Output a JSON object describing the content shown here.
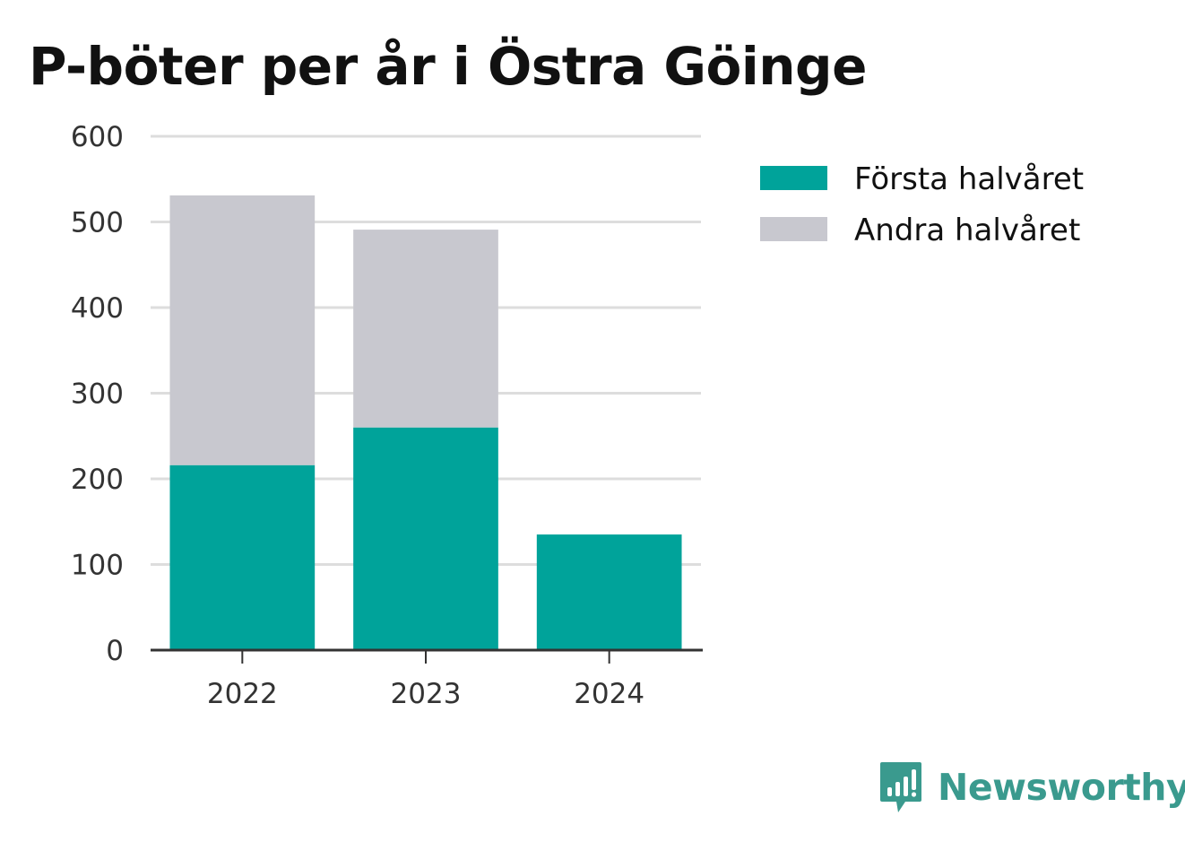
{
  "title": "P-böter per år i Östra Göinge",
  "colors": {
    "first_half": "#00a39a",
    "second_half": "#c8c8cf",
    "grid": "#dddddd",
    "axis": "#333333",
    "brand": "#3a9a8e"
  },
  "chart_data": {
    "type": "bar",
    "stacked": true,
    "categories": [
      "2022",
      "2023",
      "2024"
    ],
    "series": [
      {
        "name": "Första halvåret",
        "values": [
          216,
          260,
          135
        ],
        "color": "#00a39a"
      },
      {
        "name": "Andra halvåret",
        "values": [
          315,
          231,
          0
        ],
        "color": "#c8c8cf"
      }
    ],
    "ylim": [
      0,
      600
    ],
    "yticks": [
      0,
      100,
      200,
      300,
      400,
      500,
      600
    ],
    "grid": true,
    "legend_position": "right"
  },
  "branding": {
    "logo_text": "Newsworthy",
    "logo_icon": "newsworthy-bar-chart-icon"
  }
}
